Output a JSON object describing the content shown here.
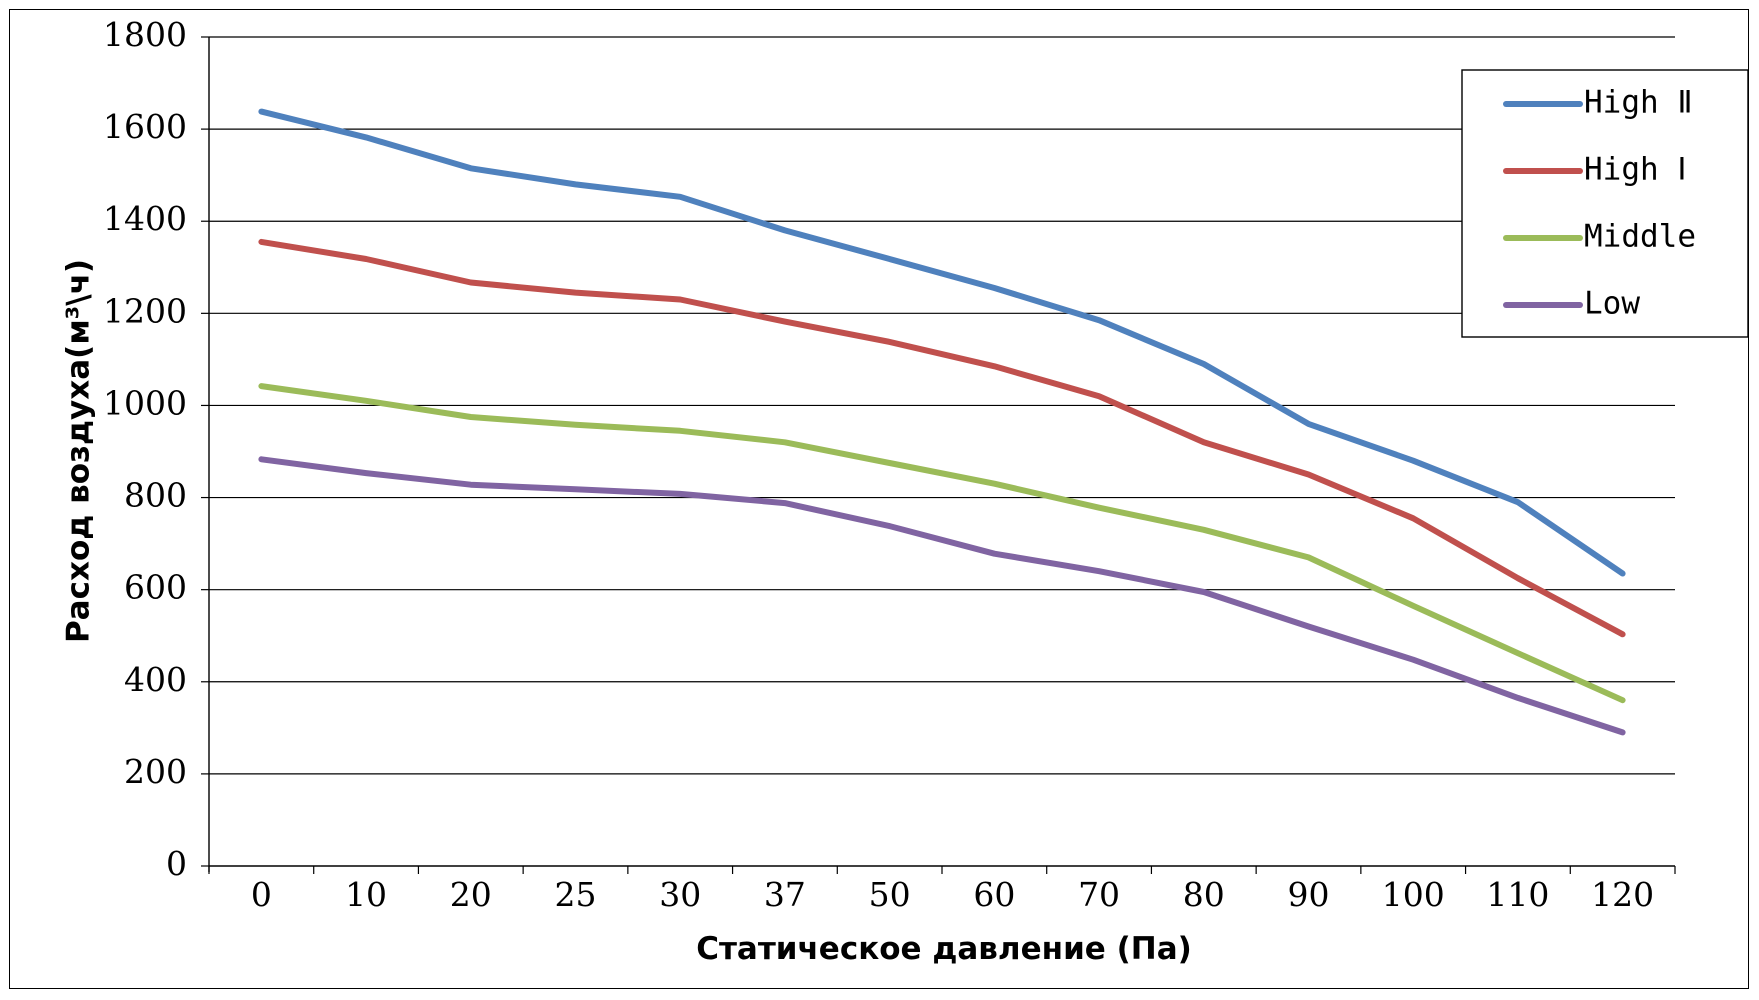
{
  "chart_data": {
    "type": "line",
    "title": "",
    "xlabel": "Статическое давление (Па)",
    "ylabel": "Расход воздуха(м³\\ч)",
    "categories": [
      "0",
      "10",
      "20",
      "25",
      "30",
      "37",
      "50",
      "60",
      "70",
      "80",
      "90",
      "100",
      "110",
      "120"
    ],
    "yticks": [
      "0",
      "200",
      "400",
      "600",
      "800",
      "1000",
      "1200",
      "1400",
      "1600",
      "1800"
    ],
    "ylim": [
      0,
      1800
    ],
    "grid": "horizontal",
    "legend_position": "top-right",
    "series": [
      {
        "name": "High Ⅱ",
        "color": "#4f81bd",
        "values": [
          1638,
          1582,
          1515,
          1480,
          1453,
          1380,
          1318,
          1255,
          1185,
          1090,
          960,
          880,
          790,
          635
        ]
      },
      {
        "name": "High Ⅰ",
        "color": "#c0504d",
        "values": [
          1355,
          1318,
          1267,
          1245,
          1230,
          1182,
          1138,
          1085,
          1020,
          920,
          850,
          755,
          625,
          503
        ]
      },
      {
        "name": "Middle",
        "color": "#9bbb59",
        "values": [
          1042,
          1010,
          975,
          958,
          945,
          920,
          875,
          830,
          778,
          730,
          670,
          565,
          462,
          360
        ]
      },
      {
        "name": "Low",
        "color": "#8064a2",
        "values": [
          883,
          853,
          828,
          818,
          808,
          788,
          738,
          678,
          640,
          595,
          520,
          448,
          365,
          290
        ]
      }
    ]
  }
}
